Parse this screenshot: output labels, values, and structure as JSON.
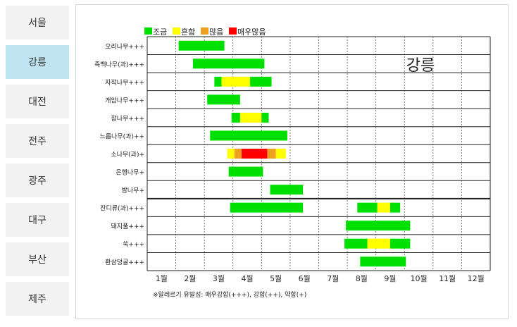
{
  "sidebar": {
    "items": [
      {
        "label": "서울"
      },
      {
        "label": "강릉",
        "active": true
      },
      {
        "label": "대전"
      },
      {
        "label": "전주"
      },
      {
        "label": "광주"
      },
      {
        "label": "대구"
      },
      {
        "label": "부산"
      },
      {
        "label": "제주"
      }
    ],
    "active_color": "#bfe4f2",
    "inactive_color": "#f2f2f2"
  },
  "chart_data": {
    "type": "bar",
    "title": "강릉",
    "legend": [
      {
        "label": "조금",
        "color": "#00e000"
      },
      {
        "label": "흔함",
        "color": "#ffff00"
      },
      {
        "label": "많음",
        "color": "#f0a020"
      },
      {
        "label": "매우많음",
        "color": "#ff0000"
      }
    ],
    "legend_position": "top",
    "x_ticks": [
      "1월",
      "2월",
      "3월",
      "4월",
      "5월",
      "6월",
      "7월",
      "8월",
      "9월",
      "10월",
      "11월",
      "12월"
    ],
    "x_range": [
      1,
      13
    ],
    "footnote": "※알레르기 유발성: 매우강함(+++), 강함(++), 약함(+)",
    "rows": [
      {
        "label": "오리나무+++",
        "segments": [
          {
            "start": 2.1,
            "end": 3.7,
            "level": 0
          }
        ]
      },
      {
        "label": "측백나무(과)+++",
        "segments": [
          {
            "start": 2.6,
            "end": 5.1,
            "level": 0
          }
        ]
      },
      {
        "label": "자작나무+++",
        "segments": [
          {
            "start": 3.35,
            "end": 3.6,
            "level": 0
          },
          {
            "start": 3.6,
            "end": 4.6,
            "level": 1
          },
          {
            "start": 4.6,
            "end": 5.35,
            "level": 0
          }
        ]
      },
      {
        "label": "개암나무+++",
        "segments": [
          {
            "start": 3.1,
            "end": 4.25,
            "level": 0
          }
        ]
      },
      {
        "label": "참나무+++",
        "segments": [
          {
            "start": 3.95,
            "end": 4.25,
            "level": 0
          },
          {
            "start": 4.25,
            "end": 5.0,
            "level": 1
          },
          {
            "start": 5.0,
            "end": 5.25,
            "level": 0
          }
        ]
      },
      {
        "label": "느릅나무(과)++",
        "segments": [
          {
            "start": 3.2,
            "end": 5.9,
            "level": 0
          }
        ]
      },
      {
        "label": "소나무(과)+",
        "segments": [
          {
            "start": 3.8,
            "end": 4.05,
            "level": 1
          },
          {
            "start": 4.05,
            "end": 4.3,
            "level": 2
          },
          {
            "start": 4.3,
            "end": 5.2,
            "level": 3
          },
          {
            "start": 5.2,
            "end": 5.5,
            "level": 2
          },
          {
            "start": 5.5,
            "end": 5.85,
            "level": 1
          }
        ]
      },
      {
        "label": "은행나무+",
        "segments": [
          {
            "start": 3.85,
            "end": 5.05,
            "level": 0
          }
        ]
      },
      {
        "label": "밤나무+",
        "segments": [
          {
            "start": 5.3,
            "end": 6.45,
            "level": 0
          }
        ]
      },
      {
        "label": "잔디류(과)+++",
        "segments": [
          {
            "start": 3.9,
            "end": 6.45,
            "level": 0
          },
          {
            "start": 8.35,
            "end": 9.05,
            "level": 0
          },
          {
            "start": 9.05,
            "end": 9.5,
            "level": 1
          },
          {
            "start": 9.5,
            "end": 9.85,
            "level": 0
          }
        ]
      },
      {
        "label": "돼지풀+++",
        "segments": [
          {
            "start": 7.95,
            "end": 10.2,
            "level": 0
          }
        ]
      },
      {
        "label": "쑥+++",
        "segments": [
          {
            "start": 7.9,
            "end": 8.7,
            "level": 0
          },
          {
            "start": 8.7,
            "end": 9.5,
            "level": 1
          },
          {
            "start": 9.5,
            "end": 10.2,
            "level": 0
          }
        ]
      },
      {
        "label": "환삼덩굴+++",
        "segments": [
          {
            "start": 8.45,
            "end": 10.05,
            "level": 0
          }
        ]
      }
    ],
    "separator_after_row": 8,
    "grid": "dashed-vertical"
  }
}
